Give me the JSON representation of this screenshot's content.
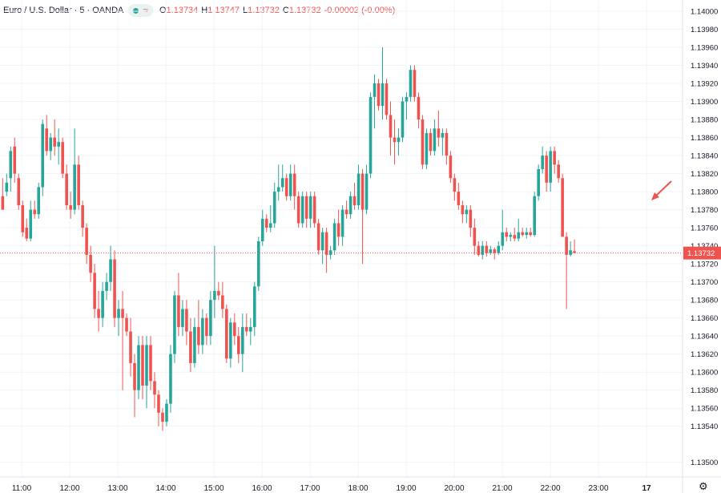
{
  "header": {
    "symbol_title": "Euro / U.S. Dollar · 5 · OANDA",
    "approx_glyph": "≈",
    "ohlc": {
      "o_key": "O",
      "o": "1.13734",
      "h_key": "H",
      "h": "1.13747",
      "l_key": "L",
      "l": "1.13732",
      "c_key": "C",
      "c": "1.13732",
      "change": "-0.00002 (-0.00%)"
    }
  },
  "colors": {
    "up": "#26a69a",
    "down": "#ef5350",
    "grid": "#f0f3fa",
    "text": "#131722",
    "last_price_bg": "#ef5350"
  },
  "icons": {
    "settings": "gear-icon",
    "annotation": "red-arrow-annotation"
  },
  "chart_data": {
    "type": "candlestick",
    "title": "",
    "xlabel": "",
    "ylabel": "",
    "interval_minutes": 5,
    "ylim": [
      1.1349,
      1.14005
    ],
    "yticks": [
      "1.14000",
      "1.13980",
      "1.13960",
      "1.13940",
      "1.13920",
      "1.13900",
      "1.13880",
      "1.13860",
      "1.13840",
      "1.13820",
      "1.13800",
      "1.13780",
      "1.13760",
      "1.13740",
      "1.13720",
      "1.13700",
      "1.13680",
      "1.13660",
      "1.13640",
      "1.13620",
      "1.13600",
      "1.13580",
      "1.13560",
      "1.13540",
      "1.13500"
    ],
    "xtick_labels": [
      "11:00",
      "12:00",
      "13:00",
      "14:00",
      "15:00",
      "16:00",
      "17:00",
      "18:00",
      "19:00",
      "20:00",
      "21:00",
      "22:00",
      "23:00",
      "17"
    ],
    "last_price": "1.13732",
    "grid": true,
    "ohlc_approx": [
      {
        "t": "10:55",
        "o": 1.13795,
        "h": 1.13815,
        "l": 1.1378,
        "c": 1.1378
      },
      {
        "t": "11:00",
        "o": 1.138,
        "h": 1.1382,
        "l": 1.13795,
        "c": 1.1381
      },
      {
        "t": "11:05",
        "o": 1.13815,
        "h": 1.1385,
        "l": 1.138,
        "c": 1.13845
      },
      {
        "t": "11:10",
        "o": 1.1385,
        "h": 1.1386,
        "l": 1.1381,
        "c": 1.1382
      },
      {
        "t": "11:15",
        "o": 1.13815,
        "h": 1.1382,
        "l": 1.1378,
        "c": 1.13785
      },
      {
        "t": "11:20",
        "o": 1.13785,
        "h": 1.1379,
        "l": 1.1375,
        "c": 1.13755
      },
      {
        "t": "11:25",
        "o": 1.1376,
        "h": 1.1377,
        "l": 1.13745,
        "c": 1.13748
      },
      {
        "t": "11:30",
        "o": 1.13748,
        "h": 1.1379,
        "l": 1.13745,
        "c": 1.1378
      },
      {
        "t": "11:35",
        "o": 1.1378,
        "h": 1.1379,
        "l": 1.1377,
        "c": 1.13775
      },
      {
        "t": "11:40",
        "o": 1.13775,
        "h": 1.1381,
        "l": 1.1377,
        "c": 1.13805
      },
      {
        "t": "11:45",
        "o": 1.13805,
        "h": 1.1388,
        "l": 1.13795,
        "c": 1.13875
      },
      {
        "t": "11:50",
        "o": 1.1387,
        "h": 1.13885,
        "l": 1.1384,
        "c": 1.13845
      },
      {
        "t": "11:55",
        "o": 1.13845,
        "h": 1.13865,
        "l": 1.13835,
        "c": 1.1386
      },
      {
        "t": "12:00",
        "o": 1.1386,
        "h": 1.1388,
        "l": 1.1384,
        "c": 1.1385
      },
      {
        "t": "12:05",
        "o": 1.1385,
        "h": 1.1387,
        "l": 1.1383,
        "c": 1.13855
      },
      {
        "t": "12:10",
        "o": 1.13855,
        "h": 1.1386,
        "l": 1.13815,
        "c": 1.1382
      },
      {
        "t": "12:15",
        "o": 1.1382,
        "h": 1.1383,
        "l": 1.1378,
        "c": 1.13785
      },
      {
        "t": "12:20",
        "o": 1.13785,
        "h": 1.138,
        "l": 1.1377,
        "c": 1.1378
      },
      {
        "t": "12:25",
        "o": 1.1378,
        "h": 1.1387,
        "l": 1.13775,
        "c": 1.1383
      },
      {
        "t": "12:30",
        "o": 1.1383,
        "h": 1.1384,
        "l": 1.1378,
        "c": 1.13785
      },
      {
        "t": "12:35",
        "o": 1.13785,
        "h": 1.1379,
        "l": 1.1375,
        "c": 1.1376
      },
      {
        "t": "12:40",
        "o": 1.1376,
        "h": 1.13765,
        "l": 1.1372,
        "c": 1.1373
      },
      {
        "t": "12:45",
        "o": 1.1373,
        "h": 1.1374,
        "l": 1.137,
        "c": 1.1371
      },
      {
        "t": "12:50",
        "o": 1.1371,
        "h": 1.1372,
        "l": 1.1366,
        "c": 1.1367
      },
      {
        "t": "12:55",
        "o": 1.1367,
        "h": 1.1369,
        "l": 1.13645,
        "c": 1.1366
      },
      {
        "t": "13:00",
        "o": 1.1366,
        "h": 1.137,
        "l": 1.1365,
        "c": 1.1369
      },
      {
        "t": "13:05",
        "o": 1.1369,
        "h": 1.1371,
        "l": 1.1368,
        "c": 1.137
      },
      {
        "t": "13:10",
        "o": 1.137,
        "h": 1.1374,
        "l": 1.1369,
        "c": 1.13725
      },
      {
        "t": "13:15",
        "o": 1.13725,
        "h": 1.13735,
        "l": 1.1365,
        "c": 1.1366
      },
      {
        "t": "13:20",
        "o": 1.1366,
        "h": 1.1368,
        "l": 1.1364,
        "c": 1.1367
      },
      {
        "t": "13:25",
        "o": 1.1367,
        "h": 1.1369,
        "l": 1.1358,
        "c": 1.1366
      },
      {
        "t": "13:30",
        "o": 1.1366,
        "h": 1.13665,
        "l": 1.1364,
        "c": 1.13645
      },
      {
        "t": "13:35",
        "o": 1.13645,
        "h": 1.1366,
        "l": 1.13595,
        "c": 1.1361
      },
      {
        "t": "13:40",
        "o": 1.1361,
        "h": 1.1362,
        "l": 1.1355,
        "c": 1.1358
      },
      {
        "t": "13:45",
        "o": 1.1358,
        "h": 1.1364,
        "l": 1.1357,
        "c": 1.1363
      },
      {
        "t": "13:50",
        "o": 1.1363,
        "h": 1.1364,
        "l": 1.1357,
        "c": 1.13585
      },
      {
        "t": "13:55",
        "o": 1.13585,
        "h": 1.1364,
        "l": 1.1356,
        "c": 1.1363
      },
      {
        "t": "14:00",
        "o": 1.1363,
        "h": 1.1364,
        "l": 1.1358,
        "c": 1.1359
      },
      {
        "t": "14:05",
        "o": 1.1359,
        "h": 1.136,
        "l": 1.1356,
        "c": 1.13575
      },
      {
        "t": "14:10",
        "o": 1.13575,
        "h": 1.1358,
        "l": 1.1354,
        "c": 1.13555
      },
      {
        "t": "14:15",
        "o": 1.13555,
        "h": 1.1356,
        "l": 1.13535,
        "c": 1.13545
      },
      {
        "t": "14:20",
        "o": 1.13545,
        "h": 1.1357,
        "l": 1.1354,
        "c": 1.13565
      },
      {
        "t": "14:25",
        "o": 1.13565,
        "h": 1.1363,
        "l": 1.13555,
        "c": 1.1362
      },
      {
        "t": "14:30",
        "o": 1.1362,
        "h": 1.1369,
        "l": 1.1361,
        "c": 1.13685
      },
      {
        "t": "14:35",
        "o": 1.13685,
        "h": 1.1371,
        "l": 1.1364,
        "c": 1.1365
      },
      {
        "t": "14:40",
        "o": 1.1365,
        "h": 1.1368,
        "l": 1.1364,
        "c": 1.1367
      },
      {
        "t": "14:45",
        "o": 1.1367,
        "h": 1.1368,
        "l": 1.1363,
        "c": 1.13645
      },
      {
        "t": "14:50",
        "o": 1.13645,
        "h": 1.1366,
        "l": 1.136,
        "c": 1.1361
      },
      {
        "t": "14:55",
        "o": 1.1361,
        "h": 1.1366,
        "l": 1.13605,
        "c": 1.1365
      },
      {
        "t": "15:00",
        "o": 1.1365,
        "h": 1.1368,
        "l": 1.1362,
        "c": 1.1363
      },
      {
        "t": "15:05",
        "o": 1.1363,
        "h": 1.1367,
        "l": 1.1362,
        "c": 1.1366
      },
      {
        "t": "15:10",
        "o": 1.1366,
        "h": 1.13665,
        "l": 1.1363,
        "c": 1.1364
      },
      {
        "t": "15:15",
        "o": 1.1364,
        "h": 1.1369,
        "l": 1.1363,
        "c": 1.1368
      },
      {
        "t": "15:20",
        "o": 1.1368,
        "h": 1.1374,
        "l": 1.1366,
        "c": 1.1369
      },
      {
        "t": "15:25",
        "o": 1.1369,
        "h": 1.137,
        "l": 1.1368,
        "c": 1.13685
      },
      {
        "t": "15:30",
        "o": 1.13685,
        "h": 1.137,
        "l": 1.1366,
        "c": 1.1367
      },
      {
        "t": "15:35",
        "o": 1.1367,
        "h": 1.13675,
        "l": 1.1361,
        "c": 1.13615
      },
      {
        "t": "15:40",
        "o": 1.13615,
        "h": 1.1366,
        "l": 1.13605,
        "c": 1.13655
      },
      {
        "t": "15:45",
        "o": 1.13655,
        "h": 1.13665,
        "l": 1.1363,
        "c": 1.1364
      },
      {
        "t": "15:50",
        "o": 1.1364,
        "h": 1.1365,
        "l": 1.1361,
        "c": 1.1362
      },
      {
        "t": "15:55",
        "o": 1.1362,
        "h": 1.13665,
        "l": 1.136,
        "c": 1.1365
      },
      {
        "t": "16:00",
        "o": 1.1365,
        "h": 1.13665,
        "l": 1.1364,
        "c": 1.13645
      },
      {
        "t": "16:05",
        "o": 1.13645,
        "h": 1.1366,
        "l": 1.1363,
        "c": 1.1365
      },
      {
        "t": "16:10",
        "o": 1.1365,
        "h": 1.137,
        "l": 1.1364,
        "c": 1.13695
      },
      {
        "t": "16:15",
        "o": 1.13695,
        "h": 1.1375,
        "l": 1.1369,
        "c": 1.13745
      },
      {
        "t": "16:20",
        "o": 1.13745,
        "h": 1.1378,
        "l": 1.1374,
        "c": 1.1377
      },
      {
        "t": "16:25",
        "o": 1.1377,
        "h": 1.13775,
        "l": 1.13755,
        "c": 1.1376
      },
      {
        "t": "16:30",
        "o": 1.1376,
        "h": 1.13785,
        "l": 1.13755,
        "c": 1.13765
      },
      {
        "t": "16:35",
        "o": 1.13765,
        "h": 1.1381,
        "l": 1.1376,
        "c": 1.138
      },
      {
        "t": "16:40",
        "o": 1.138,
        "h": 1.1383,
        "l": 1.1379,
        "c": 1.13805
      },
      {
        "t": "16:45",
        "o": 1.13805,
        "h": 1.1383,
        "l": 1.138,
        "c": 1.13815
      },
      {
        "t": "16:50",
        "o": 1.13815,
        "h": 1.1382,
        "l": 1.1379,
        "c": 1.13795
      },
      {
        "t": "16:55",
        "o": 1.13795,
        "h": 1.1383,
        "l": 1.1379,
        "c": 1.1382
      },
      {
        "t": "17:00",
        "o": 1.1382,
        "h": 1.1383,
        "l": 1.1378,
        "c": 1.13795
      },
      {
        "t": "17:05",
        "o": 1.13795,
        "h": 1.138,
        "l": 1.1376,
        "c": 1.13765
      },
      {
        "t": "17:10",
        "o": 1.13765,
        "h": 1.138,
        "l": 1.1376,
        "c": 1.13795
      },
      {
        "t": "17:15",
        "o": 1.13795,
        "h": 1.138,
        "l": 1.1376,
        "c": 1.1377
      },
      {
        "t": "17:20",
        "o": 1.1377,
        "h": 1.138,
        "l": 1.1376,
        "c": 1.13795
      },
      {
        "t": "17:25",
        "o": 1.13795,
        "h": 1.138,
        "l": 1.1376,
        "c": 1.13765
      },
      {
        "t": "17:30",
        "o": 1.13765,
        "h": 1.1377,
        "l": 1.1373,
        "c": 1.13735
      },
      {
        "t": "17:35",
        "o": 1.13735,
        "h": 1.1376,
        "l": 1.1372,
        "c": 1.13755
      },
      {
        "t": "17:40",
        "o": 1.13755,
        "h": 1.1376,
        "l": 1.1371,
        "c": 1.1373
      },
      {
        "t": "17:45",
        "o": 1.1373,
        "h": 1.1374,
        "l": 1.13725,
        "c": 1.13735
      },
      {
        "t": "17:50",
        "o": 1.13735,
        "h": 1.1377,
        "l": 1.1373,
        "c": 1.13765
      },
      {
        "t": "17:55",
        "o": 1.13765,
        "h": 1.1378,
        "l": 1.1374,
        "c": 1.1375
      },
      {
        "t": "18:00",
        "o": 1.1375,
        "h": 1.13785,
        "l": 1.1374,
        "c": 1.1378
      },
      {
        "t": "18:05",
        "o": 1.1378,
        "h": 1.1379,
        "l": 1.1377,
        "c": 1.13775
      },
      {
        "t": "18:10",
        "o": 1.13775,
        "h": 1.138,
        "l": 1.1377,
        "c": 1.13795
      },
      {
        "t": "18:15",
        "o": 1.13795,
        "h": 1.1381,
        "l": 1.1378,
        "c": 1.13785
      },
      {
        "t": "18:20",
        "o": 1.13785,
        "h": 1.1383,
        "l": 1.1378,
        "c": 1.1382
      },
      {
        "t": "18:25",
        "o": 1.1382,
        "h": 1.13825,
        "l": 1.1372,
        "c": 1.1378
      },
      {
        "t": "18:30",
        "o": 1.1378,
        "h": 1.1383,
        "l": 1.13775,
        "c": 1.1382
      },
      {
        "t": "18:35",
        "o": 1.1382,
        "h": 1.1391,
        "l": 1.13815,
        "c": 1.13905
      },
      {
        "t": "18:40",
        "o": 1.13905,
        "h": 1.1393,
        "l": 1.1387,
        "c": 1.1392
      },
      {
        "t": "18:45",
        "o": 1.1392,
        "h": 1.13925,
        "l": 1.1389,
        "c": 1.13895
      },
      {
        "t": "18:50",
        "o": 1.13895,
        "h": 1.1396,
        "l": 1.1388,
        "c": 1.1392
      },
      {
        "t": "18:55",
        "o": 1.1392,
        "h": 1.13925,
        "l": 1.1388,
        "c": 1.13885
      },
      {
        "t": "19:00",
        "o": 1.13885,
        "h": 1.139,
        "l": 1.1384,
        "c": 1.1386
      },
      {
        "t": "19:05",
        "o": 1.1386,
        "h": 1.1388,
        "l": 1.1383,
        "c": 1.13855
      },
      {
        "t": "19:10",
        "o": 1.13855,
        "h": 1.1387,
        "l": 1.1384,
        "c": 1.1386
      },
      {
        "t": "19:15",
        "o": 1.1386,
        "h": 1.13905,
        "l": 1.13855,
        "c": 1.139
      },
      {
        "t": "19:20",
        "o": 1.139,
        "h": 1.1391,
        "l": 1.1388,
        "c": 1.13905
      },
      {
        "t": "19:25",
        "o": 1.13905,
        "h": 1.1394,
        "l": 1.139,
        "c": 1.13935
      },
      {
        "t": "19:30",
        "o": 1.13935,
        "h": 1.1394,
        "l": 1.139,
        "c": 1.13905
      },
      {
        "t": "19:35",
        "o": 1.13905,
        "h": 1.1391,
        "l": 1.1387,
        "c": 1.1388
      },
      {
        "t": "19:40",
        "o": 1.1388,
        "h": 1.13885,
        "l": 1.13825,
        "c": 1.1383
      },
      {
        "t": "19:45",
        "o": 1.1383,
        "h": 1.1387,
        "l": 1.13825,
        "c": 1.13865
      },
      {
        "t": "19:50",
        "o": 1.13865,
        "h": 1.1387,
        "l": 1.1384,
        "c": 1.13845
      },
      {
        "t": "19:55",
        "o": 1.13845,
        "h": 1.1388,
        "l": 1.1384,
        "c": 1.1387
      },
      {
        "t": "20:00",
        "o": 1.1387,
        "h": 1.1389,
        "l": 1.1385,
        "c": 1.1386
      },
      {
        "t": "20:05",
        "o": 1.1386,
        "h": 1.1387,
        "l": 1.1384,
        "c": 1.13865
      },
      {
        "t": "20:10",
        "o": 1.13865,
        "h": 1.1387,
        "l": 1.1383,
        "c": 1.1384
      },
      {
        "t": "20:15",
        "o": 1.1384,
        "h": 1.13845,
        "l": 1.1381,
        "c": 1.13815
      },
      {
        "t": "20:20",
        "o": 1.13815,
        "h": 1.1382,
        "l": 1.1379,
        "c": 1.138
      },
      {
        "t": "20:25",
        "o": 1.138,
        "h": 1.1381,
        "l": 1.1378,
        "c": 1.13785
      },
      {
        "t": "20:30",
        "o": 1.13785,
        "h": 1.1379,
        "l": 1.13765,
        "c": 1.13775
      },
      {
        "t": "20:35",
        "o": 1.13775,
        "h": 1.13785,
        "l": 1.13765,
        "c": 1.1378
      },
      {
        "t": "20:40",
        "o": 1.1378,
        "h": 1.13785,
        "l": 1.1375,
        "c": 1.1376
      },
      {
        "t": "20:45",
        "o": 1.1376,
        "h": 1.1377,
        "l": 1.1373,
        "c": 1.1374
      },
      {
        "t": "20:50",
        "o": 1.1374,
        "h": 1.13745,
        "l": 1.13728,
        "c": 1.1373
      },
      {
        "t": "20:55",
        "o": 1.1373,
        "h": 1.13745,
        "l": 1.13725,
        "c": 1.1374
      },
      {
        "t": "21:00",
        "o": 1.1374,
        "h": 1.13745,
        "l": 1.13728,
        "c": 1.13732
      },
      {
        "t": "21:05",
        "o": 1.13732,
        "h": 1.1374,
        "l": 1.1373,
        "c": 1.13736
      },
      {
        "t": "21:10",
        "o": 1.13736,
        "h": 1.13738,
        "l": 1.13725,
        "c": 1.13732
      },
      {
        "t": "21:15",
        "o": 1.13732,
        "h": 1.13745,
        "l": 1.1373,
        "c": 1.1374
      },
      {
        "t": "21:20",
        "o": 1.1374,
        "h": 1.1378,
        "l": 1.13735,
        "c": 1.13755
      },
      {
        "t": "21:25",
        "o": 1.13755,
        "h": 1.1376,
        "l": 1.13745,
        "c": 1.1375
      },
      {
        "t": "21:30",
        "o": 1.1375,
        "h": 1.13755,
        "l": 1.13745,
        "c": 1.13752
      },
      {
        "t": "21:35",
        "o": 1.13752,
        "h": 1.1376,
        "l": 1.13745,
        "c": 1.13748
      },
      {
        "t": "21:40",
        "o": 1.13748,
        "h": 1.1377,
        "l": 1.13745,
        "c": 1.13755
      },
      {
        "t": "21:45",
        "o": 1.13755,
        "h": 1.1376,
        "l": 1.1375,
        "c": 1.13752
      },
      {
        "t": "21:50",
        "o": 1.13752,
        "h": 1.1376,
        "l": 1.13748,
        "c": 1.13755
      },
      {
        "t": "21:55",
        "o": 1.13755,
        "h": 1.1376,
        "l": 1.1375,
        "c": 1.13752
      },
      {
        "t": "22:00",
        "o": 1.13752,
        "h": 1.138,
        "l": 1.1375,
        "c": 1.13795
      },
      {
        "t": "22:05",
        "o": 1.13795,
        "h": 1.1383,
        "l": 1.1379,
        "c": 1.13825
      },
      {
        "t": "22:10",
        "o": 1.13825,
        "h": 1.1385,
        "l": 1.1382,
        "c": 1.1384
      },
      {
        "t": "22:15",
        "o": 1.1384,
        "h": 1.13845,
        "l": 1.138,
        "c": 1.1381
      },
      {
        "t": "22:20",
        "o": 1.1381,
        "h": 1.1385,
        "l": 1.138,
        "c": 1.13845
      },
      {
        "t": "22:25",
        "o": 1.13845,
        "h": 1.1385,
        "l": 1.1382,
        "c": 1.1383
      },
      {
        "t": "22:30",
        "o": 1.1383,
        "h": 1.13835,
        "l": 1.1381,
        "c": 1.13815
      },
      {
        "t": "22:35",
        "o": 1.13815,
        "h": 1.1382,
        "l": 1.1375,
        "c": 1.1375
      },
      {
        "t": "22:40",
        "o": 1.1375,
        "h": 1.13755,
        "l": 1.1367,
        "c": 1.1373
      },
      {
        "t": "22:45",
        "o": 1.1373,
        "h": 1.13745,
        "l": 1.13728,
        "c": 1.13735
      },
      {
        "t": "22:50",
        "o": 1.13734,
        "h": 1.13747,
        "l": 1.13732,
        "c": 1.13732
      }
    ]
  }
}
